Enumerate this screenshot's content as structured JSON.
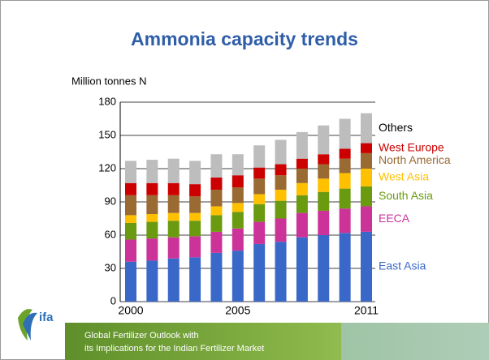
{
  "chart_data": {
    "type": "bar",
    "stacked": true,
    "title": "Ammonia capacity trends",
    "y_label": "Million tonnes N",
    "categories": [
      "2000",
      null,
      null,
      null,
      null,
      "2005",
      null,
      null,
      null,
      null,
      null,
      "2011"
    ],
    "series": [
      {
        "name": "East Asia",
        "color": "#3a68c8",
        "values": [
          36,
          37,
          39,
          40,
          44,
          46,
          52,
          54,
          58,
          60,
          62,
          63
        ]
      },
      {
        "name": "EECA",
        "color": "#cc3399",
        "values": [
          20,
          20,
          19,
          19,
          19,
          20,
          20,
          21,
          22,
          22,
          22,
          23
        ]
      },
      {
        "name": "South Asia",
        "color": "#6a9a10",
        "values": [
          15,
          15,
          15,
          14,
          15,
          15,
          16,
          16,
          16,
          17,
          18,
          18
        ]
      },
      {
        "name": "West Asia",
        "color": "#ffc000",
        "values": [
          7,
          7,
          7,
          7,
          8,
          8,
          9,
          10,
          11,
          12,
          14,
          16
        ]
      },
      {
        "name": "North America",
        "color": "#9a6a33",
        "values": [
          18,
          17,
          16,
          15,
          15,
          14,
          14,
          13,
          13,
          13,
          13,
          14
        ]
      },
      {
        "name": "West Europe",
        "color": "#cc0000",
        "values": [
          11,
          11,
          11,
          11,
          11,
          11,
          10,
          10,
          9,
          9,
          9,
          9
        ]
      },
      {
        "name": "Others",
        "color": "#bdbdbd",
        "values": [
          20,
          21,
          22,
          21,
          21,
          19,
          20,
          22,
          24,
          26,
          27,
          27
        ]
      }
    ],
    "ylim": [
      0,
      180
    ],
    "yticks": [
      0,
      30,
      60,
      90,
      120,
      150,
      180
    ],
    "grid": true
  },
  "logo": "ifa",
  "footer": [
    "Global Fertilizer Outlook with",
    "its Implications for the Indian Fertilizer Market"
  ]
}
